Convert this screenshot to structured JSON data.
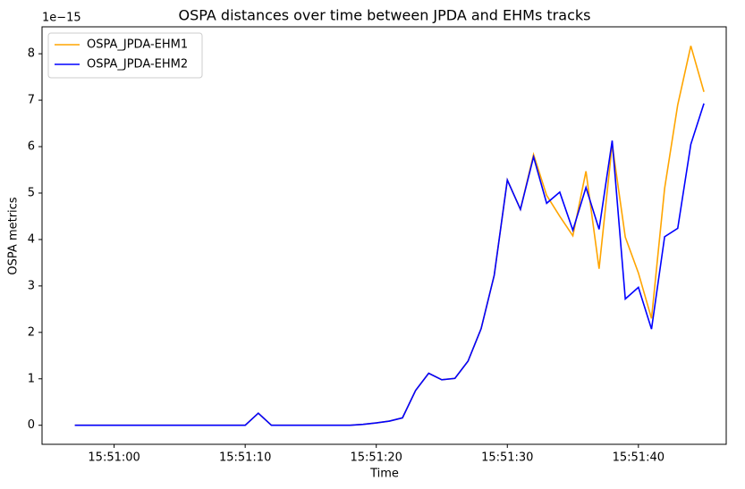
{
  "chart_data": {
    "type": "line",
    "title": "OSPA distances over time between JPDA and EHMs tracks",
    "x_label": "Time",
    "y_label": "OSPA metrics",
    "y_offset_label": "1e−15",
    "x": [
      "15:50:57",
      "15:50:58",
      "15:50:59",
      "15:51:00",
      "15:51:01",
      "15:51:02",
      "15:51:03",
      "15:51:04",
      "15:51:05",
      "15:51:06",
      "15:51:07",
      "15:51:08",
      "15:51:09",
      "15:51:10",
      "15:51:11",
      "15:51:12",
      "15:51:13",
      "15:51:14",
      "15:51:15",
      "15:51:16",
      "15:51:17",
      "15:51:18",
      "15:51:19",
      "15:51:20",
      "15:51:21",
      "15:51:22",
      "15:51:23",
      "15:51:24",
      "15:51:25",
      "15:51:26",
      "15:51:27",
      "15:51:28",
      "15:51:29",
      "15:51:30",
      "15:51:31",
      "15:51:32",
      "15:51:33",
      "15:51:34",
      "15:51:35",
      "15:51:36",
      "15:51:37",
      "15:51:38",
      "15:51:39",
      "15:51:40",
      "15:51:41",
      "15:51:42",
      "15:51:43",
      "15:51:44",
      "15:51:45"
    ],
    "series": [
      {
        "name": "OSPA_JPDA-EHM1",
        "color": "#ffa500",
        "values": [
          0,
          0,
          0,
          0,
          0,
          0,
          0,
          0,
          0,
          0,
          0,
          0,
          0,
          0,
          0.26,
          0,
          0,
          0,
          0,
          0,
          0,
          0,
          0.02,
          0.05,
          0.09,
          0.16,
          0.75,
          1.12,
          0.98,
          1.01,
          1.38,
          2.08,
          3.23,
          5.28,
          4.65,
          5.83,
          4.95,
          4.5,
          4.08,
          5.47,
          3.37,
          6.05,
          4.05,
          3.28,
          2.3,
          5.1,
          6.9,
          8.17,
          7.18
        ]
      },
      {
        "name": "OSPA_JPDA-EHM2",
        "color": "#0000ff",
        "values": [
          0,
          0,
          0,
          0,
          0,
          0,
          0,
          0,
          0,
          0,
          0,
          0,
          0,
          0,
          0.26,
          0,
          0,
          0,
          0,
          0,
          0,
          0,
          0.02,
          0.05,
          0.09,
          0.16,
          0.75,
          1.12,
          0.98,
          1.01,
          1.38,
          2.08,
          3.23,
          5.28,
          4.65,
          5.78,
          4.78,
          5.02,
          4.2,
          5.12,
          4.22,
          6.13,
          2.72,
          2.97,
          2.07,
          4.06,
          4.24,
          6.05,
          6.93
        ]
      }
    ],
    "xlim": [
      "15:50:54.5",
      "15:51:46.7"
    ],
    "xticks": [
      "15:51:00",
      "15:51:10",
      "15:51:20",
      "15:51:30",
      "15:51:40"
    ],
    "ylim": [
      -0.41,
      8.58
    ],
    "yticks": [
      0,
      1,
      2,
      3,
      4,
      5,
      6,
      7,
      8
    ],
    "legend": "upper left"
  }
}
